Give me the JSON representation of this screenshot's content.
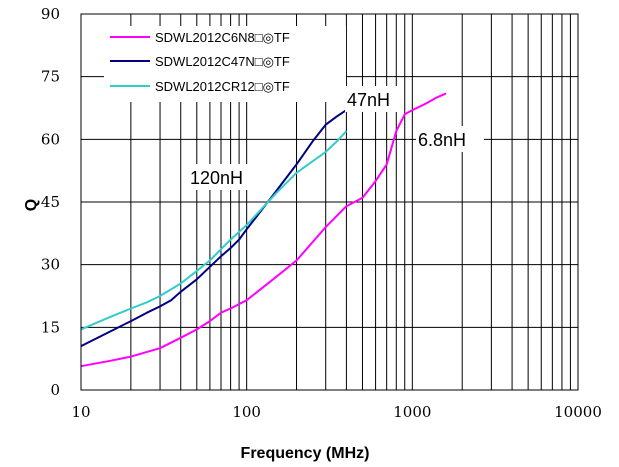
{
  "chart_data": {
    "type": "line",
    "xlabel": "Frequency (MHz)",
    "ylabel": "Q",
    "xscale": "log",
    "xlim": [
      10,
      10000
    ],
    "ylim": [
      0,
      90
    ],
    "grid": true,
    "legend_position": "top-left",
    "x_ticks": [
      "10",
      "100",
      "1000",
      "10000"
    ],
    "y_ticks": [
      "0",
      "15",
      "30",
      "45",
      "60",
      "75",
      "90"
    ],
    "series": [
      {
        "name": "SDWL2012C6N8□◎TF",
        "color": "#ff00ff",
        "points": [
          [
            10,
            5.7
          ],
          [
            15,
            7.0
          ],
          [
            20,
            8.0
          ],
          [
            30,
            10.0
          ],
          [
            40,
            12.5
          ],
          [
            50,
            14.5
          ],
          [
            60,
            16.5
          ],
          [
            70,
            18.5
          ],
          [
            80,
            19.5
          ],
          [
            100,
            21.5
          ],
          [
            150,
            27
          ],
          [
            200,
            31
          ],
          [
            300,
            39
          ],
          [
            400,
            44
          ],
          [
            500,
            46
          ],
          [
            600,
            50
          ],
          [
            700,
            54
          ],
          [
            800,
            62
          ],
          [
            900,
            66
          ],
          [
            1000,
            67
          ],
          [
            1200,
            68.5
          ],
          [
            1400,
            70
          ],
          [
            1600,
            71
          ]
        ]
      },
      {
        "name": "SDWL2012C47N□◎TF",
        "color": "#000080",
        "points": [
          [
            10,
            10.5
          ],
          [
            15,
            14
          ],
          [
            20,
            16.5
          ],
          [
            25,
            18.5
          ],
          [
            30,
            20
          ],
          [
            35,
            21.5
          ],
          [
            40,
            23.5
          ],
          [
            50,
            26.5
          ],
          [
            60,
            29.5
          ],
          [
            70,
            32
          ],
          [
            80,
            34
          ],
          [
            90,
            36
          ],
          [
            100,
            38.5
          ],
          [
            120,
            42.5
          ],
          [
            150,
            47.5
          ],
          [
            200,
            54
          ],
          [
            250,
            59.5
          ],
          [
            300,
            63.5
          ],
          [
            350,
            65.5
          ],
          [
            400,
            67
          ]
        ]
      },
      {
        "name": "SDWL2012CR12□◎TF",
        "color": "#33cccc",
        "points": [
          [
            10,
            14.5
          ],
          [
            15,
            17.5
          ],
          [
            20,
            19.5
          ],
          [
            25,
            21
          ],
          [
            30,
            22.5
          ],
          [
            40,
            25.5
          ],
          [
            50,
            28.5
          ],
          [
            60,
            31
          ],
          [
            80,
            36
          ],
          [
            100,
            39.5
          ],
          [
            150,
            47
          ],
          [
            200,
            52
          ],
          [
            300,
            57
          ],
          [
            350,
            59.5
          ],
          [
            400,
            62
          ]
        ]
      }
    ],
    "annotations": [
      "47nH",
      "6.8nH",
      "120nH"
    ]
  }
}
